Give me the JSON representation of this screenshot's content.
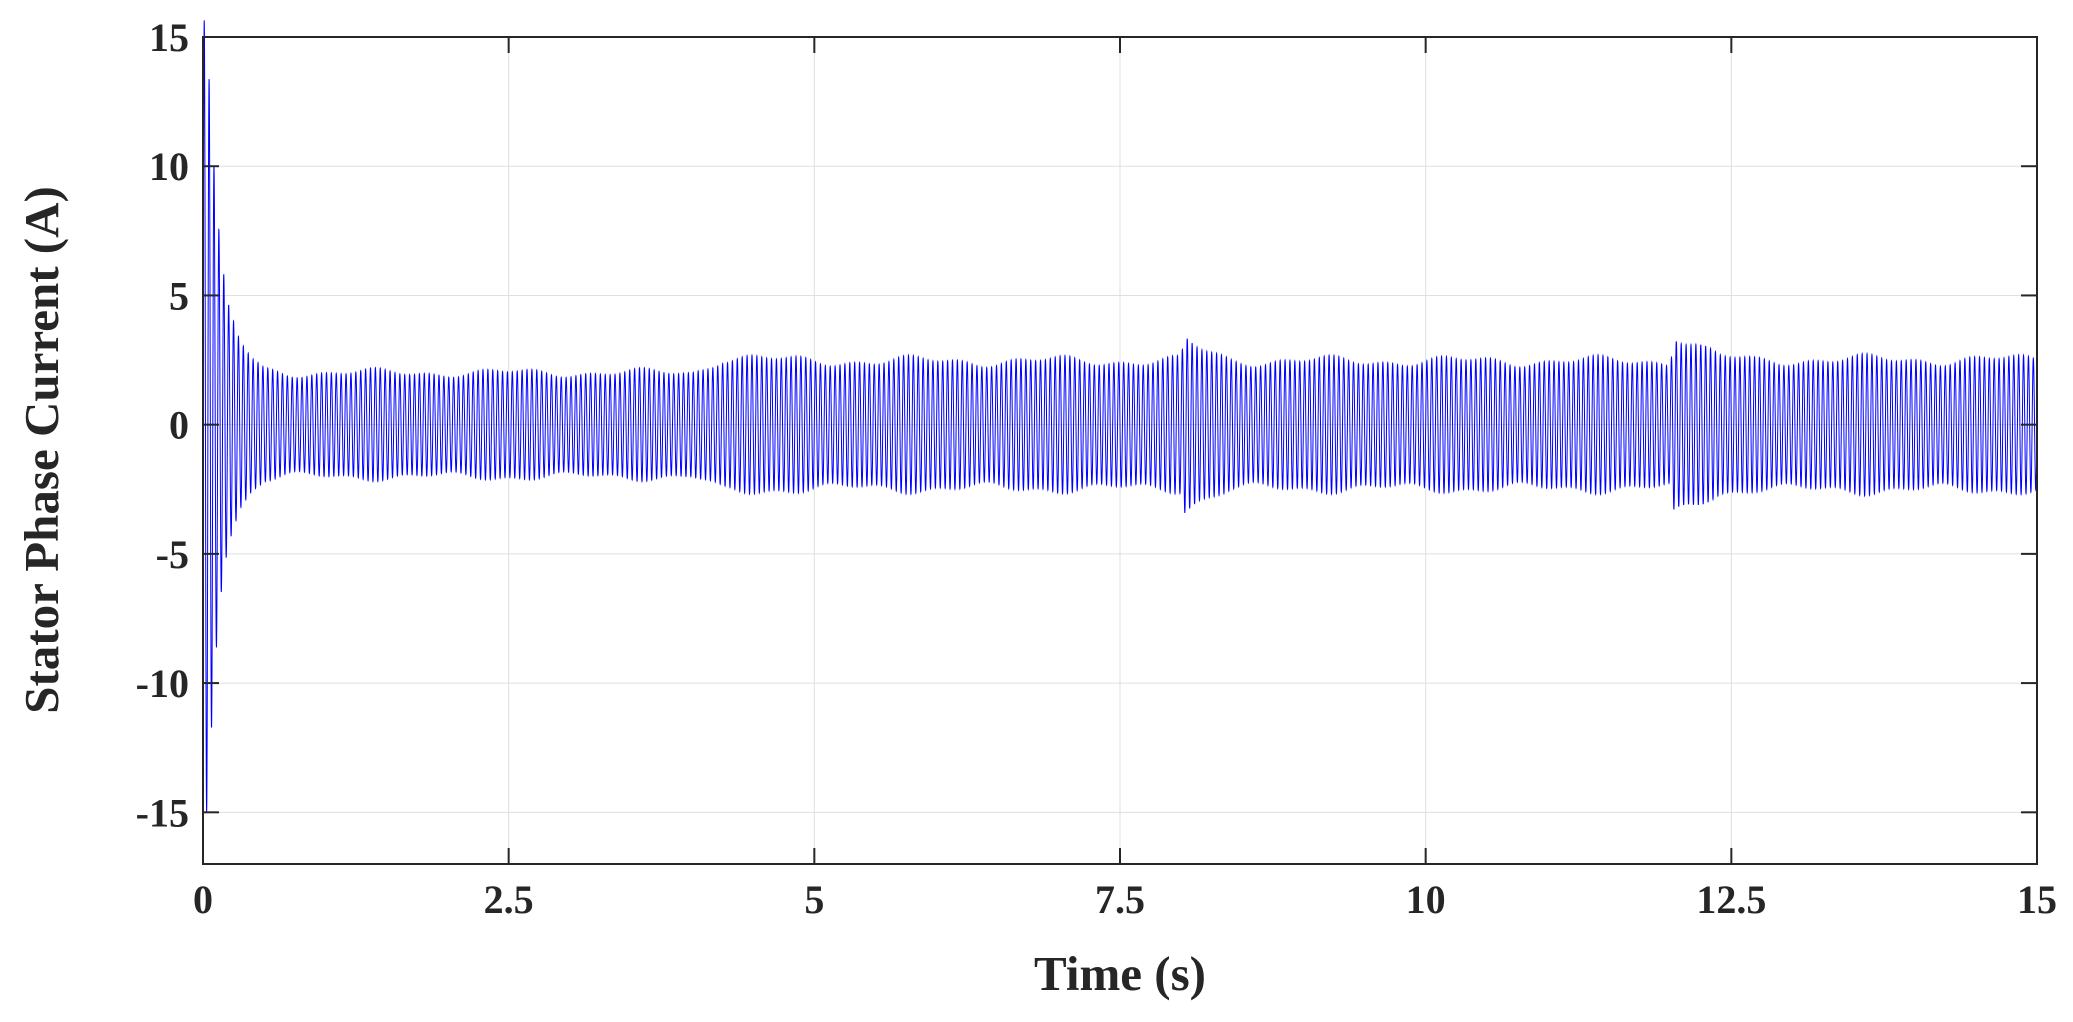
{
  "chart_data": {
    "type": "line",
    "xlabel": "Time (s)",
    "ylabel": "Stator Phase Current (A)",
    "xlim": [
      0,
      15
    ],
    "ylim": [
      -17,
      15
    ],
    "x_ticks": [
      0,
      2.5,
      5,
      7.5,
      10,
      12.5,
      15
    ],
    "x_tick_labels": [
      "0",
      "2.5",
      "5",
      "7.5",
      "10",
      "12.5",
      "15"
    ],
    "y_ticks": [
      15,
      10,
      5,
      0,
      -5,
      -10,
      -15
    ],
    "y_tick_labels": [
      "15",
      "10",
      "5",
      "0",
      "-5",
      "-10",
      "-15"
    ],
    "grid": true,
    "line_color": "#0000ff",
    "series": [
      {
        "signal": "sinusoid",
        "frequency_hz": 25,
        "envelope": {
          "time_s": [
            0,
            0.02,
            0.05,
            0.1,
            0.15,
            0.2,
            0.3,
            0.4,
            0.5,
            0.7,
            1.0,
            2.0,
            3.0,
            4.0,
            4.1,
            4.25,
            4.5,
            4.8,
            5.5,
            7.0,
            8.0,
            8.03,
            8.15,
            8.4,
            8.7,
            10.0,
            12.0,
            12.03,
            12.15,
            12.4,
            12.7,
            13.0,
            14.0,
            15.0
          ],
          "amplitude_a": [
            15.5,
            15.5,
            12.8,
            8.5,
            6.0,
            4.5,
            3.2,
            2.5,
            2.1,
            2.0,
            2.0,
            2.0,
            2.0,
            2.0,
            2.2,
            2.6,
            2.55,
            2.45,
            2.45,
            2.45,
            2.45,
            3.2,
            2.9,
            2.5,
            2.45,
            2.45,
            2.45,
            3.6,
            3.2,
            2.6,
            2.45,
            2.5,
            2.5,
            2.5
          ]
        }
      }
    ]
  }
}
